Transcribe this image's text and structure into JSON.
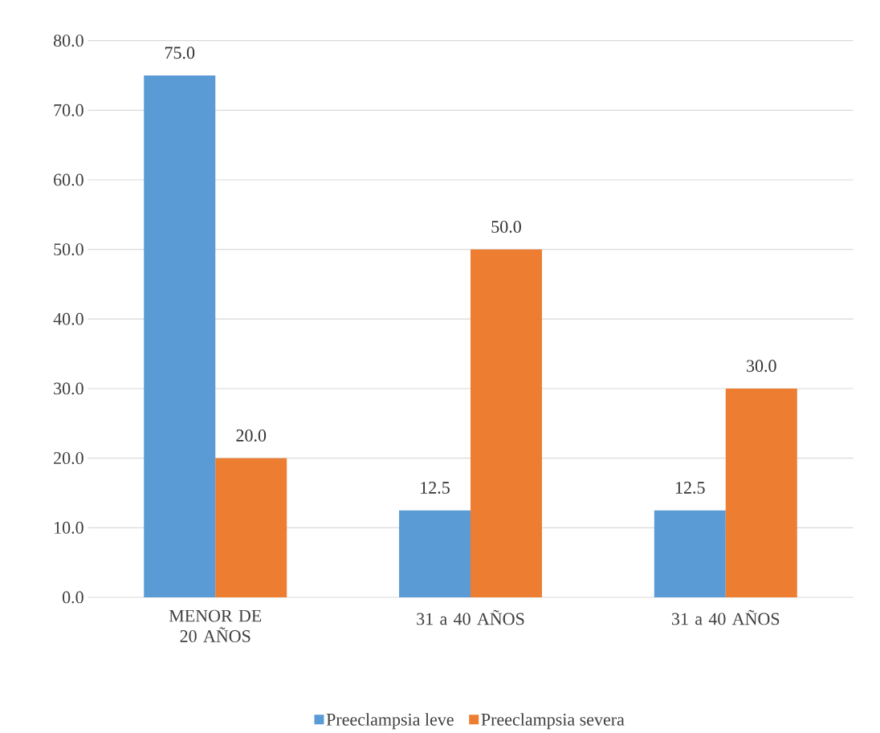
{
  "chart_data": {
    "type": "bar",
    "categories": [
      "MENOR DE 20 AÑOS",
      "31 a 40 AÑOS",
      "31 a 40 AÑOS"
    ],
    "series": [
      {
        "name": "Preeclampsia leve",
        "color": "#5b9bd5",
        "values": [
          75.0,
          12.5,
          12.5
        ],
        "value_labels": [
          "75.0",
          "12.5",
          "12.5"
        ]
      },
      {
        "name": "Preeclampsia severa",
        "color": "#ed7d31",
        "values": [
          20.0,
          50.0,
          30.0
        ],
        "value_labels": [
          "20.0",
          "50.0",
          "30.0"
        ]
      }
    ],
    "ylim": [
      0,
      80
    ],
    "yticks": [
      {
        "value": 0,
        "label": "0.0"
      },
      {
        "value": 10,
        "label": "10.0"
      },
      {
        "value": 20,
        "label": "20.0"
      },
      {
        "value": 30,
        "label": "30.0"
      },
      {
        "value": 40,
        "label": "40.0"
      },
      {
        "value": 50,
        "label": "50.0"
      },
      {
        "value": 60,
        "label": "60.0"
      },
      {
        "value": 70,
        "label": "70.0"
      },
      {
        "value": 80,
        "label": "80.0"
      }
    ],
    "grid": "y",
    "legend": "bottom"
  }
}
